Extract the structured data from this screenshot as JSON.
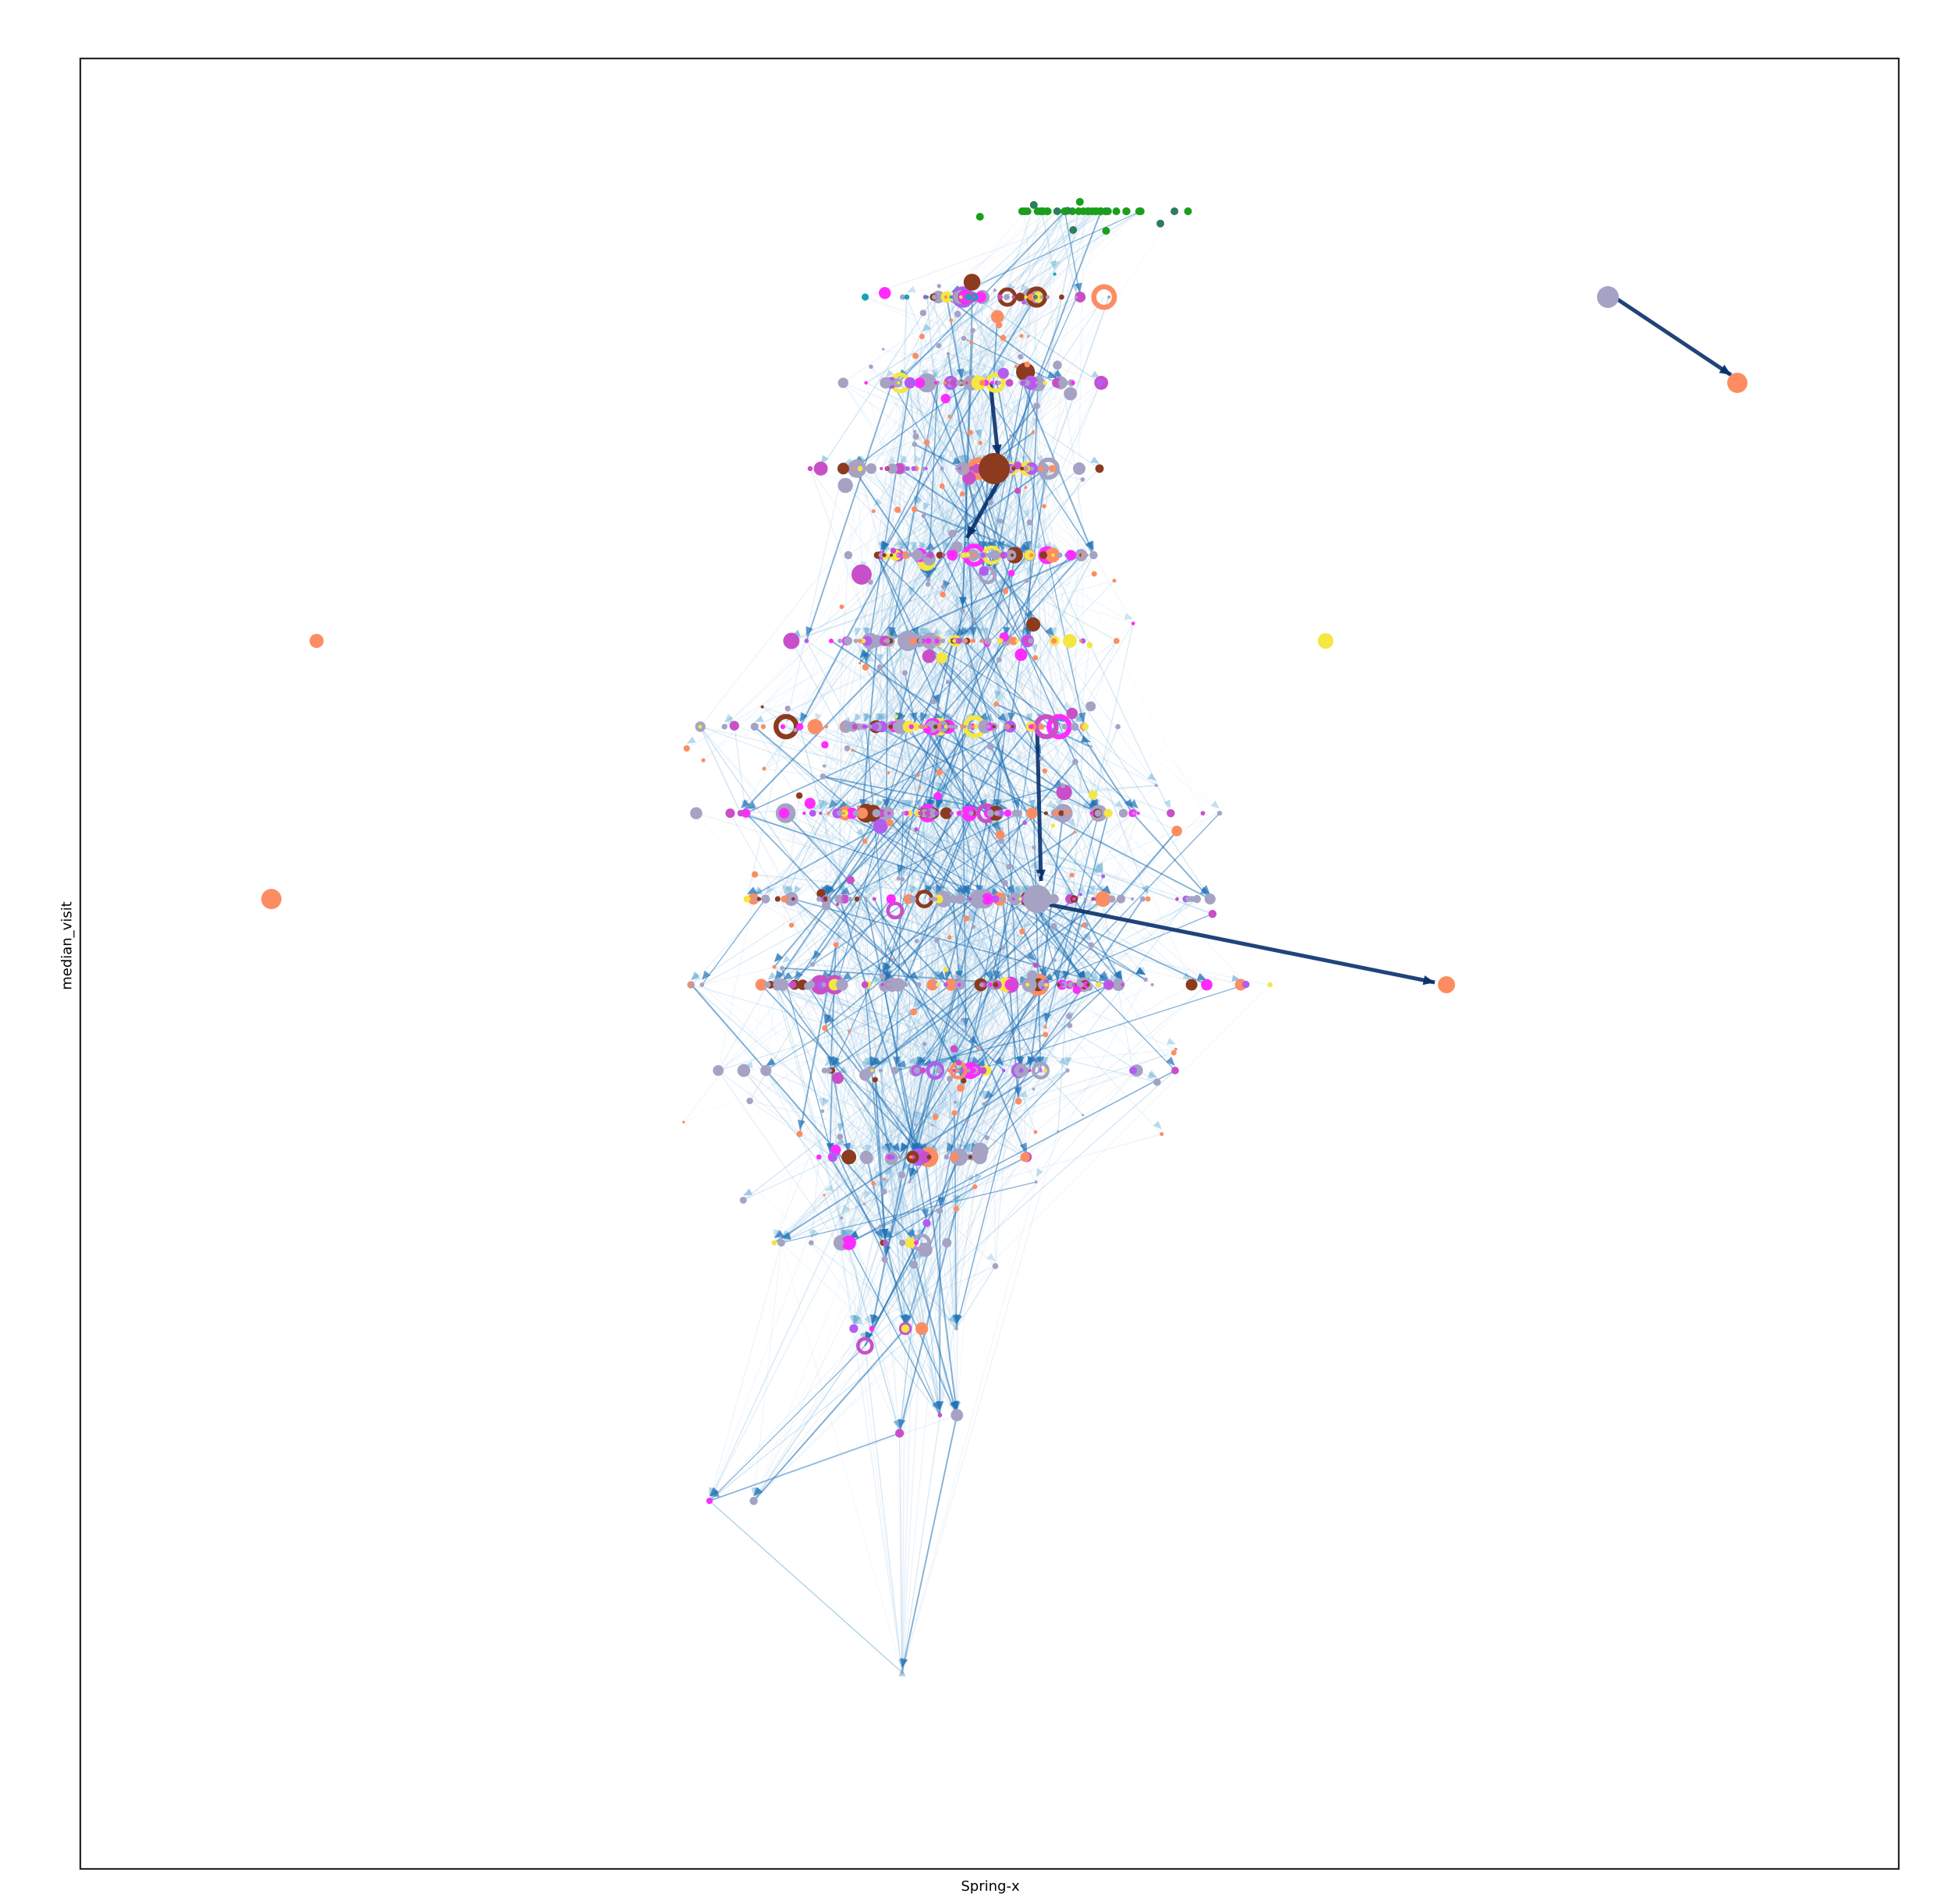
{
  "chart_data": {
    "type": "network",
    "xlabel": "Spring-x",
    "ylabel": "median_visit",
    "x_ticks": [],
    "y_ticks": [],
    "grid": false,
    "legend": "none",
    "layer_count": 17,
    "colors": {
      "edge_light": "#c6dbef",
      "edge_mid": "#6baed6",
      "edge_dark": "#2171b5",
      "edge_heavy": "#08306b",
      "node_grey": "#a6a2c4",
      "node_salmon": "#fc8d62",
      "node_green": "#1b9e1b",
      "node_teal": "#17a2b8",
      "node_brown": "#8c3b1f",
      "node_magenta": "#ff2bff",
      "node_violet": "#b35cf0",
      "node_orchid": "#c94fc9",
      "node_yellow": "#f5e642",
      "node_orange": "#e08214"
    }
  }
}
